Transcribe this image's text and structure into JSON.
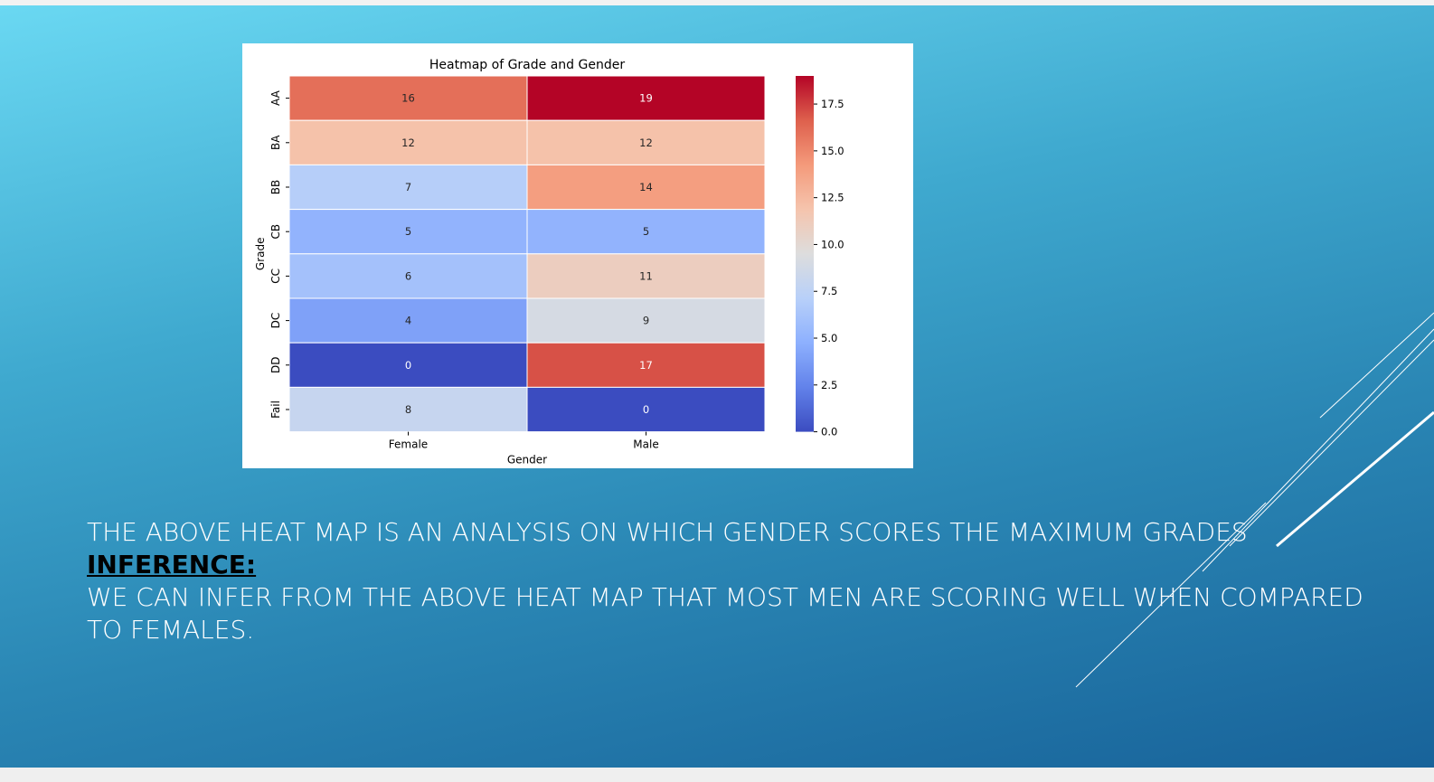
{
  "slide": {
    "main_text": "THE ABOVE HEAT MAP IS AN ANALYSIS ON WHICH GENDER  SCORES THE MAXIMUM GRADES",
    "inference_heading": "INFERENCE:",
    "inference_line1": "WE CAN INFER FROM THE ABOVE HEAT MAP THAT MOST  MEN ARE SCORING WELL WHEN COMPARED",
    "inference_line2": "TO FEMALES."
  },
  "chart_data": {
    "type": "heatmap",
    "title": "Heatmap of Grade and Gender",
    "xlabel": "Gender",
    "ylabel": "Grade",
    "x_categories": [
      "Female",
      "Male"
    ],
    "y_categories": [
      "AA",
      "BA",
      "BB",
      "CB",
      "CC",
      "DC",
      "DD",
      "Fail"
    ],
    "values": [
      [
        16,
        19
      ],
      [
        12,
        12
      ],
      [
        7,
        14
      ],
      [
        5,
        5
      ],
      [
        6,
        11
      ],
      [
        4,
        9
      ],
      [
        0,
        17
      ],
      [
        8,
        0
      ]
    ],
    "colormap": "coolwarm",
    "colorbar_range": [
      0,
      19
    ],
    "colorbar_ticks": [
      "0.0",
      "2.5",
      "5.0",
      "7.5",
      "10.0",
      "12.5",
      "15.0",
      "17.5"
    ],
    "colorbar_tick_values": [
      0,
      2.5,
      5,
      7.5,
      10,
      12.5,
      15,
      17.5
    ],
    "colors": {
      "low": "#3b4cc0",
      "mid": "#dddddd",
      "high": "#b40426"
    }
  }
}
